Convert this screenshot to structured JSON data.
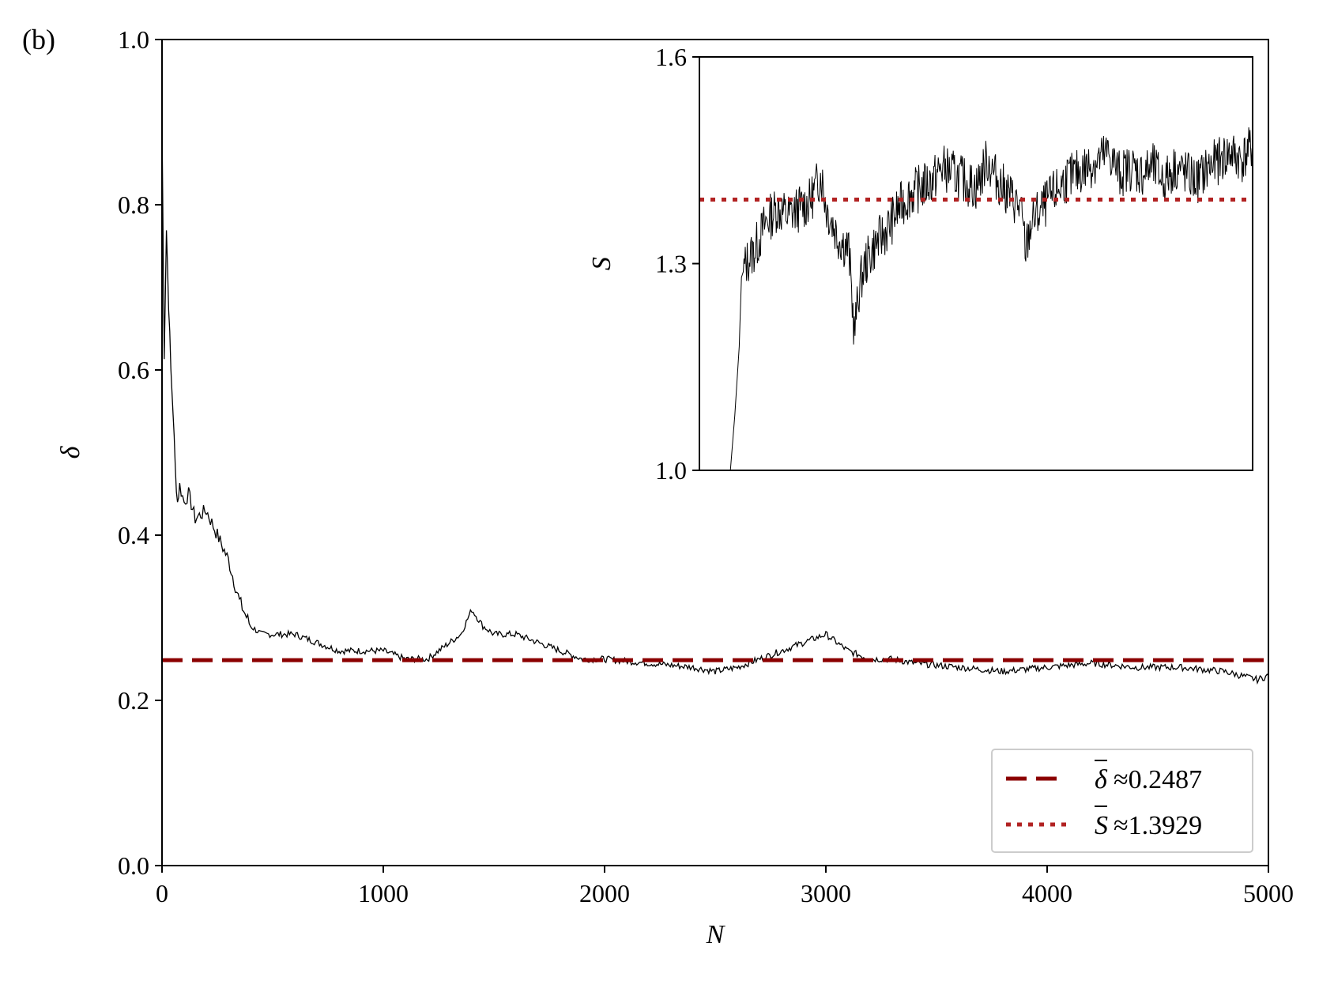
{
  "panel_label": "(b)",
  "colors": {
    "series": "#000000",
    "mean_delta": "#8b0000",
    "mean_s": "#b22222",
    "legend_border": "#cccccc"
  },
  "chart_data": [
    {
      "type": "line",
      "role": "main",
      "xlabel": "N",
      "ylabel": "δ",
      "xlim": [
        0,
        5000
      ],
      "ylim": [
        0.0,
        1.0
      ],
      "xticks": [
        "0",
        "1000",
        "2000",
        "3000",
        "4000",
        "5000"
      ],
      "xtick_values": [
        0,
        1000,
        2000,
        3000,
        4000,
        5000
      ],
      "yticks": [
        "0.0",
        "0.2",
        "0.4",
        "0.6",
        "0.8",
        "1.0"
      ],
      "ytick_values": [
        0.0,
        0.2,
        0.4,
        0.6,
        0.8,
        1.0
      ],
      "grid": false,
      "series": [
        {
          "x": [
            1,
            10,
            20,
            30,
            40,
            50,
            60,
            70,
            80,
            100,
            120,
            150,
            200,
            250,
            300,
            350,
            400,
            450,
            500,
            600,
            700,
            800,
            900,
            1000,
            1100,
            1200,
            1300,
            1350,
            1400,
            1450,
            1500,
            1600,
            1700,
            1800,
            1900,
            2000,
            2200,
            2400,
            2500,
            2600,
            2800,
            2900,
            3000,
            3100,
            3200,
            3300,
            3400,
            3600,
            3800,
            4000,
            4200,
            4400,
            4600,
            4800,
            4950,
            5000
          ],
          "y": [
            0.87,
            0.62,
            0.77,
            0.68,
            0.6,
            0.55,
            0.48,
            0.44,
            0.46,
            0.44,
            0.45,
            0.42,
            0.43,
            0.4,
            0.37,
            0.32,
            0.29,
            0.28,
            0.28,
            0.28,
            0.27,
            0.26,
            0.26,
            0.26,
            0.25,
            0.25,
            0.27,
            0.28,
            0.31,
            0.29,
            0.28,
            0.28,
            0.27,
            0.26,
            0.25,
            0.25,
            0.245,
            0.24,
            0.235,
            0.24,
            0.26,
            0.27,
            0.28,
            0.26,
            0.25,
            0.25,
            0.245,
            0.24,
            0.235,
            0.24,
            0.245,
            0.24,
            0.24,
            0.235,
            0.225,
            0.23
          ]
        }
      ],
      "reference_lines": [
        {
          "y": 0.2487,
          "style": "dashed",
          "label": "≈0.2487",
          "symbol": "δ"
        }
      ],
      "legend": {
        "position": "lower-right",
        "entries": [
          {
            "symbol": "δ",
            "text": "≈0.2487",
            "style": "dashed"
          },
          {
            "symbol": "S",
            "text": "≈1.3929",
            "style": "dotted"
          }
        ]
      }
    },
    {
      "type": "line",
      "role": "inset",
      "ylabel": "S",
      "yticks": [
        "1.0",
        "1.3",
        "1.6"
      ],
      "ytick_values": [
        1.0,
        1.3,
        1.6
      ],
      "xlim": [
        0,
        5000
      ],
      "ylim": [
        1.0,
        1.6
      ],
      "grid": false,
      "series": [
        {
          "x": [
            280,
            320,
            360,
            380,
            420,
            500,
            600,
            700,
            800,
            900,
            1000,
            1100,
            1150,
            1200,
            1250,
            1300,
            1350,
            1400,
            1450,
            1500,
            1600,
            1700,
            1800,
            1900,
            2000,
            2100,
            2200,
            2300,
            2400,
            2500,
            2600,
            2700,
            2800,
            2900,
            2950,
            3000,
            3100,
            3200,
            3300,
            3400,
            3500,
            3600,
            3700,
            3800,
            3900,
            4000,
            4100,
            4200,
            4300,
            4400,
            4500,
            4600,
            4700,
            4800,
            4900,
            5000
          ],
          "x_note": "",
          "y": [
            1.0,
            1.08,
            1.18,
            1.28,
            1.3,
            1.32,
            1.36,
            1.38,
            1.37,
            1.38,
            1.39,
            1.43,
            1.38,
            1.36,
            1.34,
            1.33,
            1.32,
            1.2,
            1.27,
            1.3,
            1.33,
            1.35,
            1.38,
            1.4,
            1.41,
            1.42,
            1.44,
            1.43,
            1.42,
            1.41,
            1.45,
            1.42,
            1.4,
            1.38,
            1.32,
            1.36,
            1.38,
            1.4,
            1.42,
            1.43,
            1.44,
            1.45,
            1.46,
            1.43,
            1.44,
            1.43,
            1.44,
            1.42,
            1.44,
            1.43,
            1.42,
            1.44,
            1.45,
            1.46,
            1.45,
            1.47
          ]
        }
      ],
      "reference_lines": [
        {
          "y": 1.3929,
          "style": "dotted"
        }
      ]
    }
  ]
}
